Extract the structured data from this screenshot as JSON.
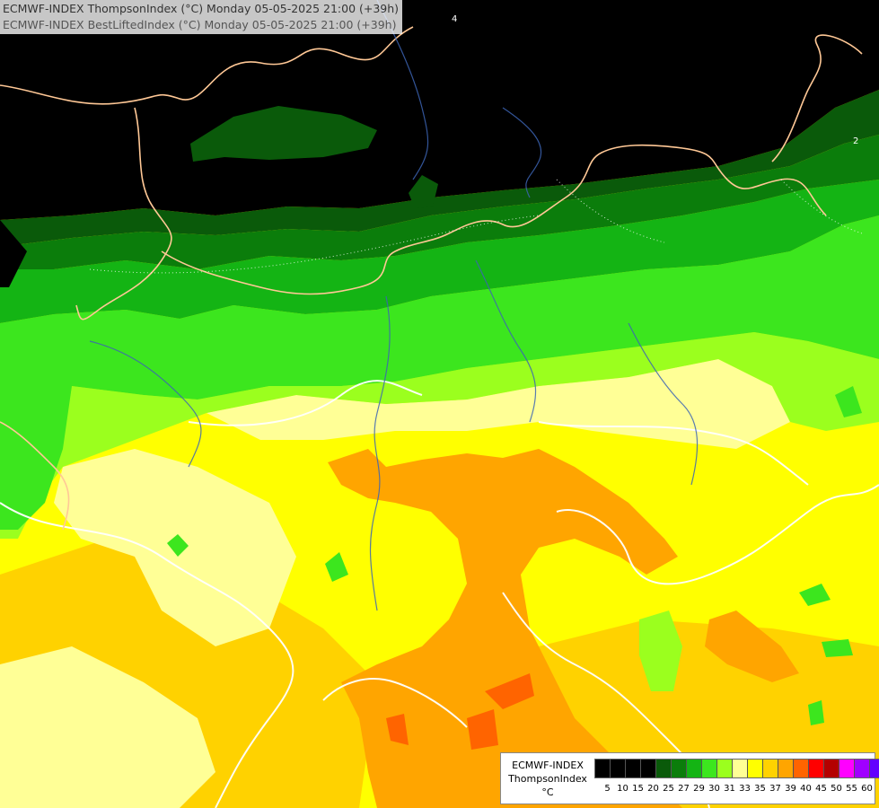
{
  "header": {
    "line1": "ECMWF-INDEX ThompsonIndex (°C) Monday 05-05-2025 21:00 (+39h)",
    "line2": "ECMWF-INDEX BestLiftedIndex (°C) Monday 05-05-2025 21:00 (+39h)"
  },
  "legend": {
    "line1": "ECMWF-INDEX",
    "line2": "ThompsonIndex",
    "line3": "°C",
    "ticks": [
      "5",
      "10",
      "15",
      "20",
      "25",
      "27",
      "29",
      "30",
      "31",
      "33",
      "35",
      "37",
      "39",
      "40",
      "45",
      "50",
      "55",
      "60"
    ],
    "colors": [
      "#000000",
      "#000000",
      "#000000",
      "#000000",
      "#0a5a0a",
      "#0b7d0b",
      "#14b414",
      "#3ce61e",
      "#9bff1e",
      "#ffff96",
      "#ffff00",
      "#ffd200",
      "#ffa500",
      "#ff6400",
      "#ff0000",
      "#b40000",
      "#ff00ff",
      "#a000ff",
      "#6400ff",
      "#0000ff"
    ]
  },
  "map": {
    "zones": [
      {
        "name": "dark",
        "color": "#000000"
      },
      {
        "name": "deep-green",
        "color": "#0a5a0a"
      },
      {
        "name": "green",
        "color": "#0b7d0b"
      },
      {
        "name": "bright-green",
        "color": "#14b414"
      },
      {
        "name": "lime",
        "color": "#3ce61e"
      },
      {
        "name": "yellow-green",
        "color": "#9bff1e"
      },
      {
        "name": "pale-yellow",
        "color": "#ffff96"
      },
      {
        "name": "yellow",
        "color": "#ffff00"
      },
      {
        "name": "gold",
        "color": "#ffd200"
      },
      {
        "name": "orange",
        "color": "#ffa500"
      },
      {
        "name": "red-orange",
        "color": "#ff6400"
      }
    ],
    "border_color": "#ffc896",
    "river_color": "#3c64b4",
    "contour_color": "#ffffff",
    "contour_labels": [
      "4",
      "2"
    ]
  }
}
